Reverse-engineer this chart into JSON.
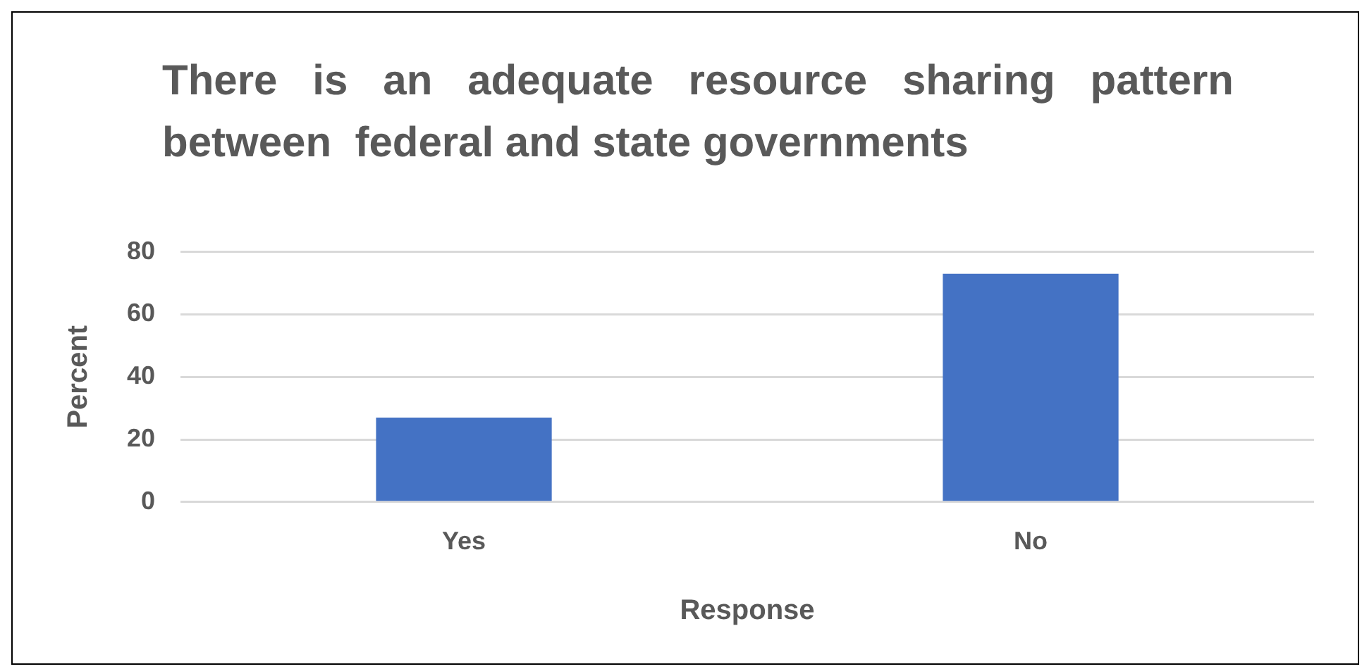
{
  "chart_data": {
    "type": "bar",
    "title": "There is an adequate resource sharing pattern between  federal and state governments",
    "xlabel": "Response",
    "ylabel": "Percent",
    "categories": [
      "Yes",
      "No"
    ],
    "values": [
      27,
      73
    ],
    "color": "#4472c4",
    "ylim": [
      0,
      80
    ],
    "yticks": [
      0,
      20,
      40,
      60,
      80
    ],
    "grid": "y",
    "legend": false
  }
}
